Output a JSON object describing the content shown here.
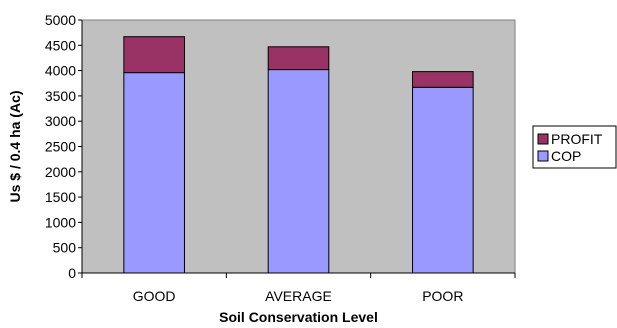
{
  "chart_data": {
    "type": "bar",
    "stacked": true,
    "categories": [
      "GOOD",
      "AVERAGE",
      "POOR"
    ],
    "series": [
      {
        "name": "COP",
        "values": [
          3960,
          4020,
          3670
        ],
        "color": "#9999ff"
      },
      {
        "name": "PROFIT",
        "values": [
          710,
          450,
          310
        ],
        "color": "#993366"
      }
    ],
    "xlabel": "Soil Conservation Level",
    "ylabel": "Us $ / 0.4 ha (Ac)",
    "ylim": [
      0,
      5000
    ],
    "yticks": [
      "0",
      "500",
      "1000",
      "1500",
      "2000",
      "2500",
      "3000",
      "3500",
      "4000",
      "4500",
      "5000"
    ],
    "grid": false,
    "legend_position": "right",
    "plot_background": "#c0c0c0"
  }
}
